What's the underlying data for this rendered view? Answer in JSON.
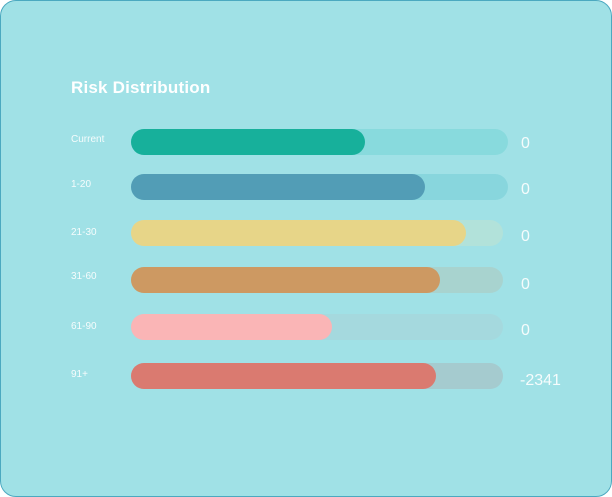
{
  "chart_data": {
    "type": "bar",
    "orientation": "horizontal",
    "title": "Risk Distribution",
    "categories": [
      "Current",
      "1-20",
      "21-30",
      "31-60",
      "61-90",
      "91+"
    ],
    "fill_fractions": [
      0.62,
      0.78,
      0.9,
      0.83,
      0.54,
      0.82
    ],
    "value_labels": [
      "0",
      "0",
      "0",
      "0",
      "0",
      "-2341"
    ],
    "colors": {
      "fills": [
        "#17b09b",
        "#529db6",
        "#e7d588",
        "#cd9962",
        "#fab5b6",
        "#da7a70"
      ],
      "tracks": [
        "#88dadd",
        "#88d6dd",
        "#b2e2da",
        "#a8d3cf",
        "#a5d9de",
        "#a5cbcf"
      ]
    },
    "grid": false,
    "legend": "none"
  }
}
